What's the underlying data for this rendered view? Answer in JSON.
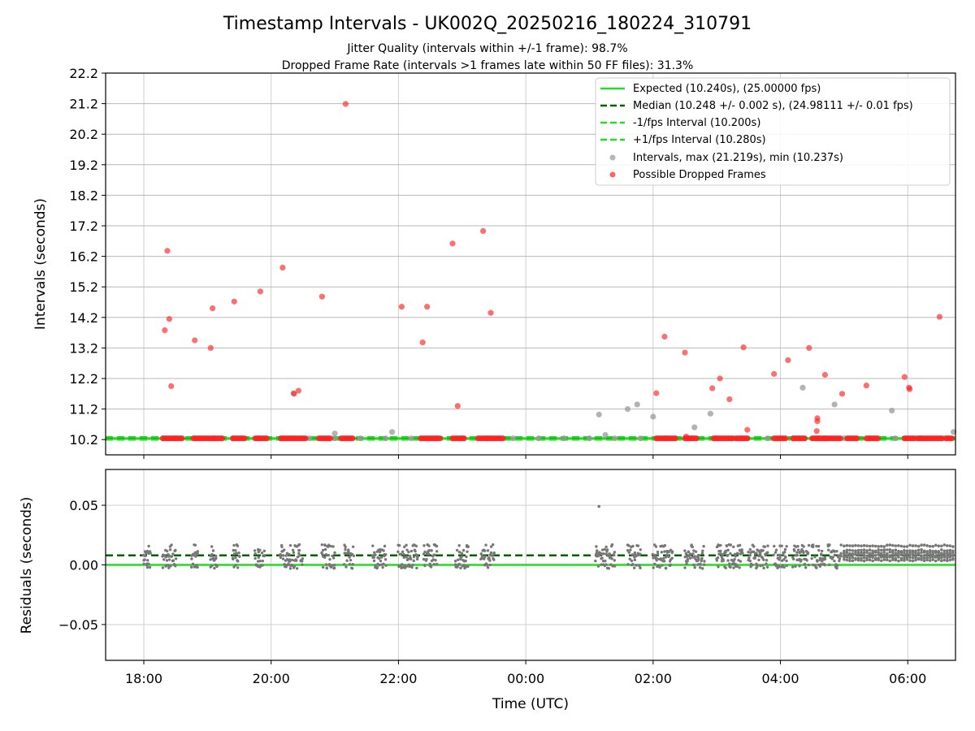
{
  "chart_data": [
    {
      "type": "scatter",
      "title": "Timestamp Intervals - UK002Q_20250216_180224_310791",
      "subtitle_lines": [
        "Jitter Quality (intervals within +/-1 frame): 98.7%",
        "Dropped Frame Rate (intervals >1 frames late within 50 FF files): 31.3%"
      ],
      "xlabel": "",
      "ylabel": "Intervals (seconds)",
      "x_unit": "hours since 18:00 UTC",
      "xlim": [
        -0.6,
        12.75
      ],
      "ylim": [
        9.7,
        22.2
      ],
      "yticks": [
        10.2,
        11.2,
        12.2,
        13.2,
        14.2,
        15.2,
        16.2,
        17.2,
        18.2,
        19.2,
        20.2,
        21.2,
        22.2
      ],
      "ytick_labels": [
        "10.2",
        "11.2",
        "12.2",
        "13.2",
        "14.2",
        "15.2",
        "16.2",
        "17.2",
        "18.2",
        "19.2",
        "20.2",
        "21.2",
        "22.2"
      ],
      "grid": "both",
      "lines": [
        {
          "name": "Expected (10.240s), (25.00000 fps)",
          "y": 10.24,
          "color": "#22dd22",
          "style": "solid"
        },
        {
          "name": "Median (10.248 +/- 0.002 s), (24.98111 +/- 0.01 fps)",
          "y": 10.248,
          "color": "#006400",
          "style": "dashed"
        },
        {
          "name": "-1/fps Interval (10.200s)",
          "y": 10.2,
          "color": "#22dd22",
          "style": "dashed"
        },
        {
          "name": "+1/fps Interval (10.280s)",
          "y": 10.28,
          "color": "#22dd22",
          "style": "dashed"
        }
      ],
      "scatter_series": [
        {
          "name": "Intervals, max (21.219s), min (10.237s)",
          "color": "#999999",
          "points": [
            [
              0.3,
              10.24
            ],
            [
              0.5,
              10.24
            ],
            [
              0.8,
              10.24
            ],
            [
              1.1,
              10.24
            ],
            [
              1.4,
              10.24
            ],
            [
              1.8,
              10.24
            ],
            [
              2.2,
              10.24
            ],
            [
              2.6,
              10.24
            ],
            [
              3.0,
              10.24
            ],
            [
              3.4,
              10.24
            ],
            [
              3.8,
              10.24
            ],
            [
              4.2,
              10.24
            ],
            [
              4.6,
              10.24
            ],
            [
              5.0,
              10.24
            ],
            [
              5.4,
              10.24
            ],
            [
              5.8,
              10.24
            ],
            [
              6.2,
              10.24
            ],
            [
              6.6,
              10.24
            ],
            [
              7.0,
              10.24
            ],
            [
              7.4,
              10.24
            ],
            [
              7.8,
              10.24
            ],
            [
              8.2,
              10.24
            ],
            [
              8.6,
              10.24
            ],
            [
              9.0,
              10.24
            ],
            [
              9.4,
              10.24
            ],
            [
              9.8,
              10.24
            ],
            [
              10.2,
              10.24
            ],
            [
              10.6,
              10.24
            ],
            [
              11.0,
              10.24
            ],
            [
              11.4,
              10.24
            ],
            [
              11.8,
              10.24
            ],
            [
              12.2,
              10.24
            ],
            [
              12.6,
              10.24
            ],
            [
              3.0,
              10.4
            ],
            [
              3.9,
              10.45
            ],
            [
              2.35,
              11.72
            ],
            [
              7.15,
              11.02
            ],
            [
              7.25,
              10.35
            ],
            [
              7.6,
              11.2
            ],
            [
              7.75,
              11.35
            ],
            [
              8.0,
              10.95
            ],
            [
              8.65,
              10.6
            ],
            [
              8.9,
              11.05
            ],
            [
              10.35,
              11.9
            ],
            [
              10.85,
              11.35
            ],
            [
              11.75,
              11.15
            ],
            [
              12.72,
              10.45
            ]
          ]
        },
        {
          "name": "Possible Dropped Frames",
          "color": "#ff2222",
          "points": [
            [
              0.33,
              13.78
            ],
            [
              0.37,
              16.38
            ],
            [
              0.4,
              14.15
            ],
            [
              0.43,
              11.95
            ],
            [
              0.8,
              13.45
            ],
            [
              1.05,
              13.2
            ],
            [
              1.08,
              14.5
            ],
            [
              1.42,
              14.72
            ],
            [
              1.83,
              15.05
            ],
            [
              2.18,
              15.83
            ],
            [
              2.36,
              11.7
            ],
            [
              2.43,
              11.8
            ],
            [
              2.8,
              14.88
            ],
            [
              3.17,
              21.19
            ],
            [
              4.05,
              14.55
            ],
            [
              4.38,
              13.38
            ],
            [
              4.45,
              14.55
            ],
            [
              4.85,
              16.62
            ],
            [
              4.93,
              11.3
            ],
            [
              5.33,
              17.03
            ],
            [
              5.45,
              14.35
            ],
            [
              8.05,
              11.72
            ],
            [
              8.18,
              13.57
            ],
            [
              8.5,
              13.05
            ],
            [
              8.52,
              10.3
            ],
            [
              8.93,
              11.88
            ],
            [
              9.05,
              12.2
            ],
            [
              9.2,
              11.52
            ],
            [
              9.42,
              13.22
            ],
            [
              9.48,
              10.52
            ],
            [
              9.9,
              12.35
            ],
            [
              10.12,
              12.8
            ],
            [
              10.45,
              13.2
            ],
            [
              10.57,
              10.48
            ],
            [
              10.58,
              10.9
            ],
            [
              10.58,
              10.8
            ],
            [
              10.7,
              12.32
            ],
            [
              10.97,
              11.7
            ],
            [
              11.35,
              11.97
            ],
            [
              11.95,
              12.25
            ],
            [
              12.02,
              11.9
            ],
            [
              12.03,
              11.85
            ],
            [
              12.5,
              14.22
            ]
          ],
          "baseline_clusters_hours": [
            [
              0.3,
              0.6
            ],
            [
              0.78,
              1.0
            ],
            [
              1.02,
              1.25
            ],
            [
              1.4,
              1.6
            ],
            [
              1.75,
              1.95
            ],
            [
              2.15,
              2.55
            ],
            [
              2.75,
              2.95
            ],
            [
              3.1,
              3.3
            ],
            [
              4.35,
              4.65
            ],
            [
              4.85,
              5.05
            ],
            [
              5.25,
              5.65
            ],
            [
              8.05,
              8.35
            ],
            [
              8.5,
              8.7
            ],
            [
              8.95,
              9.25
            ],
            [
              9.3,
              9.5
            ],
            [
              9.9,
              10.1
            ],
            [
              10.2,
              10.4
            ],
            [
              10.5,
              10.7
            ],
            [
              10.7,
              10.95
            ],
            [
              11.05,
              11.2
            ],
            [
              11.35,
              11.55
            ],
            [
              11.95,
              12.1
            ],
            [
              12.15,
              12.55
            ],
            [
              12.6,
              12.7
            ]
          ]
        }
      ],
      "legend": "top-right"
    },
    {
      "type": "scatter",
      "title": "",
      "xlabel": "Time (UTC)",
      "ylabel": "Residuals (seconds)",
      "xlim": [
        -0.6,
        12.75
      ],
      "ylim": [
        -0.08,
        0.08
      ],
      "yticks": [
        -0.05,
        0.0,
        0.05
      ],
      "ytick_labels": [
        "−0.05",
        "0.00",
        "0.05"
      ],
      "xticks": [
        0,
        2,
        4,
        6,
        8,
        10,
        12
      ],
      "xtick_labels": [
        "18:00",
        "20:00",
        "22:00",
        "00:00",
        "02:00",
        "04:00",
        "06:00"
      ],
      "grid": "both",
      "lines": [
        {
          "name": "Expected",
          "y": 0.0,
          "color": "#22dd22",
          "style": "solid"
        },
        {
          "name": "Median",
          "y": 0.008,
          "color": "#006400",
          "style": "dashed"
        }
      ],
      "residual_groups_hours": [
        [
          0.0,
          0.1
        ],
        [
          0.3,
          0.5
        ],
        [
          0.75,
          0.85
        ],
        [
          1.05,
          1.15
        ],
        [
          1.4,
          1.5
        ],
        [
          1.75,
          1.9
        ],
        [
          2.15,
          2.5
        ],
        [
          2.8,
          3.0
        ],
        [
          3.15,
          3.3
        ],
        [
          3.6,
          3.8
        ],
        [
          4.0,
          4.3
        ],
        [
          4.4,
          4.6
        ],
        [
          4.9,
          5.1
        ],
        [
          5.3,
          5.5
        ],
        [
          7.1,
          7.4
        ],
        [
          7.6,
          7.8
        ],
        [
          8.0,
          8.3
        ],
        [
          8.5,
          8.8
        ],
        [
          9.0,
          9.4
        ],
        [
          9.5,
          9.8
        ],
        [
          9.9,
          10.1
        ],
        [
          10.2,
          10.45
        ],
        [
          10.5,
          10.7
        ],
        [
          10.75,
          10.95
        ]
      ],
      "residual_dense_range_hours": [
        11.0,
        12.75
      ],
      "residual_outliers": [
        [
          7.15,
          0.049
        ]
      ],
      "series_color": "#777777"
    }
  ]
}
